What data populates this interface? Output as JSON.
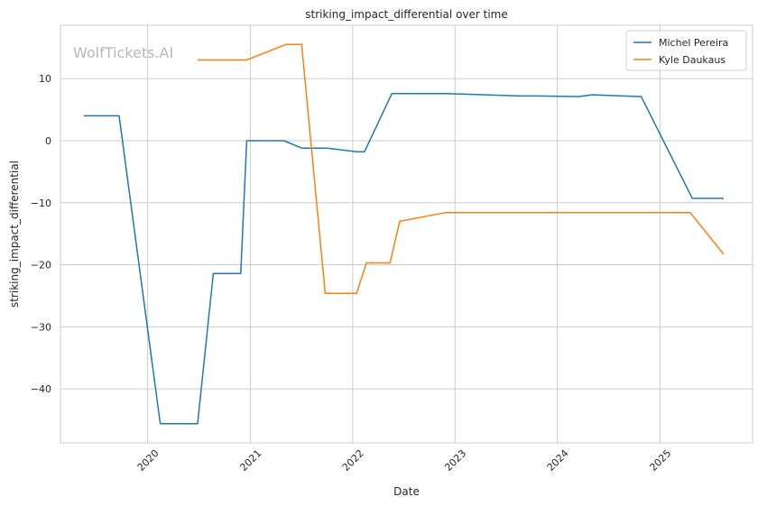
{
  "chart_data": {
    "type": "line",
    "title": "striking_impact_differential over time",
    "xlabel": "Date",
    "ylabel": "striking_impact_differential",
    "watermark": "WolfTickets.AI",
    "xlim": [
      "2019-02-24",
      "2025-11-27"
    ],
    "ylim": [
      -48.7,
      18.6
    ],
    "x_ticks": [
      "2020",
      "2021",
      "2022",
      "2023",
      "2024",
      "2025"
    ],
    "y_ticks": [
      10,
      0,
      -10,
      -20,
      -30,
      -40
    ],
    "y_tick_labels": [
      "10",
      "0",
      "−10",
      "−20",
      "−30",
      "−40"
    ],
    "grid": true,
    "legend": "top-right",
    "series": [
      {
        "name": "Michel Pereira",
        "color": "#1f77b4",
        "points": [
          [
            "2019-05-18",
            4
          ],
          [
            "2019-09-21",
            4
          ],
          [
            "2020-02-15",
            -45.6
          ],
          [
            "2020-06-27",
            -45.6
          ],
          [
            "2020-08-22",
            -21.4
          ],
          [
            "2020-11-28",
            -21.4
          ],
          [
            "2020-12-19",
            0
          ],
          [
            "2021-05-01",
            0
          ],
          [
            "2021-07-03",
            -1.2
          ],
          [
            "2021-10-02",
            -1.2
          ],
          [
            "2022-01-15",
            -1.8
          ],
          [
            "2022-02-12",
            -1.8
          ],
          [
            "2022-05-21",
            7.6
          ],
          [
            "2022-11-26",
            7.6
          ],
          [
            "2023-08-19",
            7.2
          ],
          [
            "2023-10-21",
            7.2
          ],
          [
            "2024-03-16",
            7.1
          ],
          [
            "2024-05-04",
            7.4
          ],
          [
            "2024-10-26",
            7.1
          ],
          [
            "2025-04-26",
            -9.3
          ],
          [
            "2025-08-16",
            -9.3
          ]
        ]
      },
      {
        "name": "Kyle Daukaus",
        "color": "#ff7f0e",
        "points": [
          [
            "2020-06-27",
            13
          ],
          [
            "2020-12-19",
            13
          ],
          [
            "2021-05-08",
            15.5
          ],
          [
            "2021-07-03",
            15.5
          ],
          [
            "2021-09-25",
            -24.6
          ],
          [
            "2022-01-15",
            -24.6
          ],
          [
            "2022-02-19",
            -19.7
          ],
          [
            "2022-05-14",
            -19.7
          ],
          [
            "2022-06-18",
            -13
          ],
          [
            "2022-11-26",
            -11.6
          ],
          [
            "2025-04-19",
            -11.6
          ],
          [
            "2025-08-16",
            -18.3
          ]
        ]
      }
    ]
  }
}
